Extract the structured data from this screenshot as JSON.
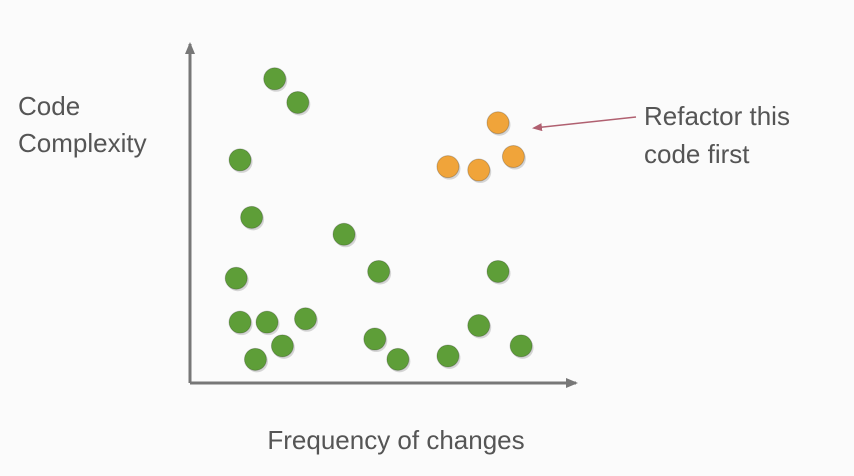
{
  "chart_data": {
    "type": "scatter",
    "ylabel": [
      "Code",
      "Complexity"
    ],
    "xlabel": "Frequency of changes",
    "annotation": [
      "Refactor this",
      "code first"
    ],
    "xlim": [
      0,
      100
    ],
    "ylim": [
      0,
      100
    ],
    "series": [
      {
        "color": "#5e9e38",
        "x": [
          22,
          28,
          13,
          16,
          12,
          13,
          20,
          30,
          17,
          24,
          40,
          49,
          48,
          54,
          67,
          75,
          80,
          86
        ],
        "values": [
          90,
          83,
          66,
          49,
          31,
          18,
          18,
          19,
          7,
          11,
          44,
          33,
          13,
          7,
          8,
          17,
          33,
          11
        ]
      },
      {
        "color": "#f0a43a",
        "x": [
          80,
          84,
          67,
          75
        ],
        "values": [
          77,
          67,
          64,
          63
        ]
      }
    ]
  }
}
